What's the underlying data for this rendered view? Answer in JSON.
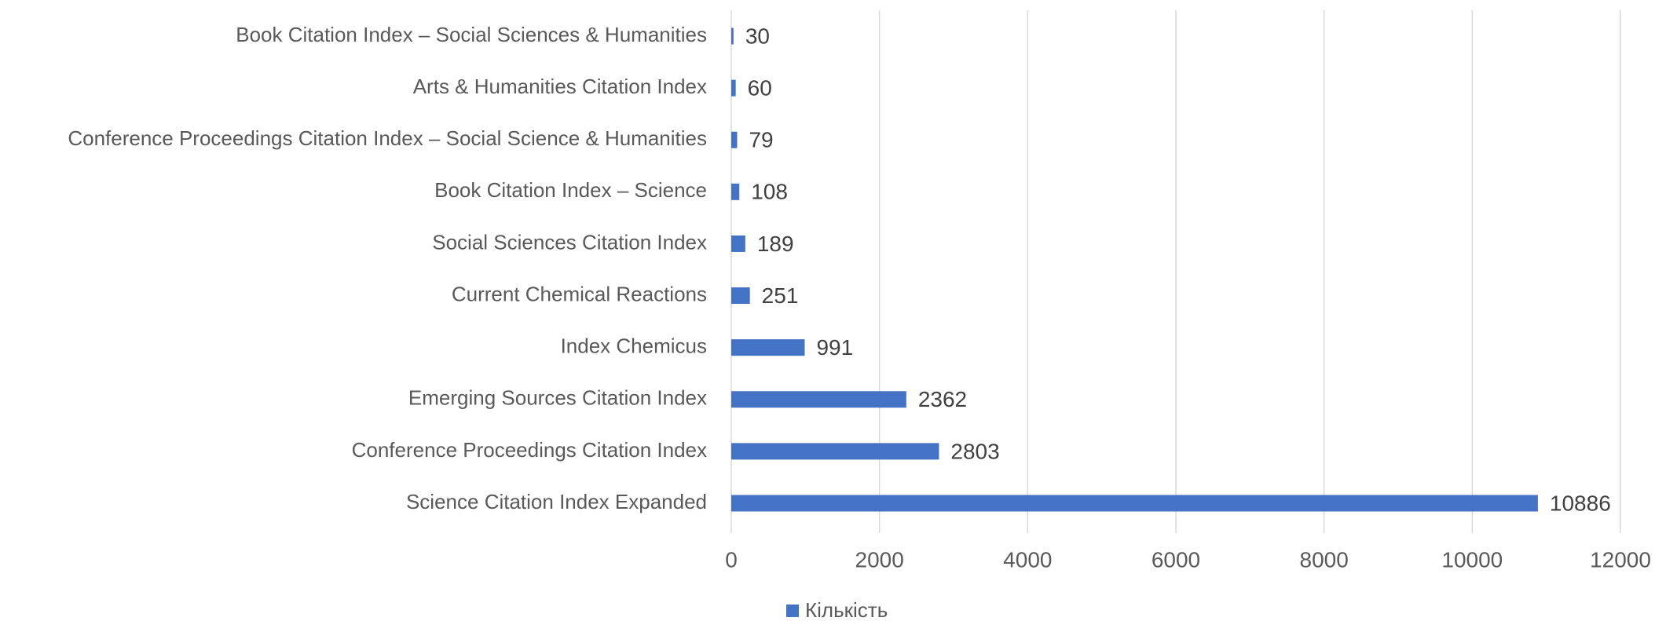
{
  "chart_data": {
    "type": "bar",
    "orientation": "horizontal",
    "categories": [
      "Book Citation Index – Social Sciences & Humanities",
      "Arts & Humanities Citation Index",
      "Conference Proceedings Citation Index – Social Science & Humanities",
      "Book Citation Index – Science",
      "Social Sciences Citation Index",
      "Current Chemical Reactions",
      "Index Chemicus",
      "Emerging Sources Citation Index",
      "Conference Proceedings Citation Index",
      "Science Citation Index Expanded"
    ],
    "series": [
      {
        "name": "Кількість",
        "color": "#4472c4",
        "values": [
          30,
          60,
          79,
          108,
          189,
          251,
          991,
          2362,
          2803,
          10886
        ]
      }
    ],
    "xlim": [
      0,
      12000
    ],
    "xticks": [
      0,
      2000,
      4000,
      6000,
      8000,
      10000,
      12000
    ],
    "grid": true,
    "legend": "bottom"
  }
}
